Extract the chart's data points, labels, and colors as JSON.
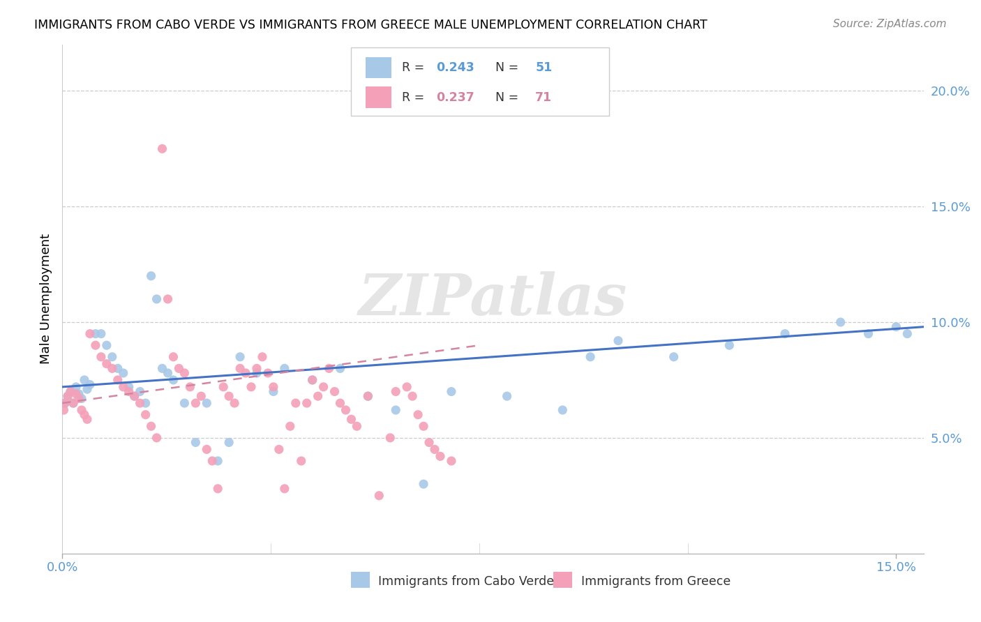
{
  "title": "IMMIGRANTS FROM CABO VERDE VS IMMIGRANTS FROM GREECE MALE UNEMPLOYMENT CORRELATION CHART",
  "source": "Source: ZipAtlas.com",
  "ylabel": "Male Unemployment",
  "cabo_verde_scatter_color": "#a8c8e8",
  "greece_scatter_color": "#f4a0b8",
  "cabo_verde_line_color": "#4472c4",
  "greece_line_color": "#d4849e",
  "watermark": "ZIPatlas",
  "cabo_verde_R": "0.243",
  "cabo_verde_N": "51",
  "greece_R": "0.237",
  "greece_N": "71",
  "cabo_verde_label": "Immigrants from Cabo Verde",
  "greece_label": "Immigrants from Greece",
  "xlim": [
    0.0,
    0.155
  ],
  "ylim": [
    0.0,
    0.22
  ],
  "background_color": "#ffffff",
  "cabo_verde_x": [
    0.0005,
    0.001,
    0.0015,
    0.002,
    0.0025,
    0.003,
    0.0035,
    0.004,
    0.0045,
    0.005,
    0.006,
    0.007,
    0.008,
    0.009,
    0.01,
    0.011,
    0.012,
    0.013,
    0.014,
    0.015,
    0.016,
    0.017,
    0.018,
    0.019,
    0.02,
    0.022,
    0.024,
    0.026,
    0.028,
    0.03,
    0.032,
    0.035,
    0.038,
    0.04,
    0.045,
    0.05,
    0.055,
    0.06,
    0.065,
    0.07,
    0.08,
    0.09,
    0.095,
    0.1,
    0.11,
    0.12,
    0.13,
    0.14,
    0.145,
    0.15,
    0.152
  ],
  "cabo_verde_y": [
    0.065,
    0.068,
    0.07,
    0.065,
    0.072,
    0.069,
    0.067,
    0.075,
    0.071,
    0.073,
    0.095,
    0.095,
    0.09,
    0.085,
    0.08,
    0.078,
    0.072,
    0.068,
    0.07,
    0.065,
    0.12,
    0.11,
    0.08,
    0.078,
    0.075,
    0.065,
    0.048,
    0.065,
    0.04,
    0.048,
    0.085,
    0.078,
    0.07,
    0.08,
    0.075,
    0.08,
    0.068,
    0.062,
    0.03,
    0.07,
    0.068,
    0.062,
    0.085,
    0.092,
    0.085,
    0.09,
    0.095,
    0.1,
    0.095,
    0.098,
    0.095
  ],
  "greece_x": [
    0.0003,
    0.0005,
    0.001,
    0.0015,
    0.002,
    0.0025,
    0.003,
    0.0035,
    0.004,
    0.0045,
    0.005,
    0.006,
    0.007,
    0.008,
    0.009,
    0.01,
    0.011,
    0.012,
    0.013,
    0.014,
    0.015,
    0.016,
    0.017,
    0.018,
    0.019,
    0.02,
    0.021,
    0.022,
    0.023,
    0.024,
    0.025,
    0.026,
    0.027,
    0.028,
    0.029,
    0.03,
    0.031,
    0.032,
    0.033,
    0.034,
    0.035,
    0.036,
    0.037,
    0.038,
    0.039,
    0.04,
    0.041,
    0.042,
    0.043,
    0.044,
    0.045,
    0.046,
    0.047,
    0.048,
    0.049,
    0.05,
    0.051,
    0.052,
    0.053,
    0.055,
    0.057,
    0.059,
    0.06,
    0.062,
    0.063,
    0.064,
    0.065,
    0.066,
    0.067,
    0.068,
    0.07
  ],
  "greece_y": [
    0.062,
    0.065,
    0.068,
    0.07,
    0.065,
    0.069,
    0.067,
    0.062,
    0.06,
    0.058,
    0.095,
    0.09,
    0.085,
    0.082,
    0.08,
    0.075,
    0.072,
    0.07,
    0.068,
    0.065,
    0.06,
    0.055,
    0.05,
    0.175,
    0.11,
    0.085,
    0.08,
    0.078,
    0.072,
    0.065,
    0.068,
    0.045,
    0.04,
    0.028,
    0.072,
    0.068,
    0.065,
    0.08,
    0.078,
    0.072,
    0.08,
    0.085,
    0.078,
    0.072,
    0.045,
    0.028,
    0.055,
    0.065,
    0.04,
    0.065,
    0.075,
    0.068,
    0.072,
    0.08,
    0.07,
    0.065,
    0.062,
    0.058,
    0.055,
    0.068,
    0.025,
    0.05,
    0.07,
    0.072,
    0.068,
    0.06,
    0.055,
    0.048,
    0.045,
    0.042,
    0.04
  ]
}
